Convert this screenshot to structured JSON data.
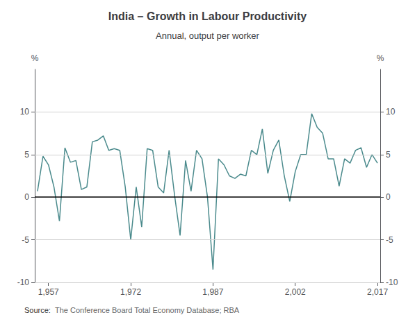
{
  "chart_data": {
    "type": "line",
    "title": "India – Growth in Labour Productivity",
    "subtitle": "Annual, output per worker",
    "source_label": "Source:",
    "source_text": "The Conference Board Total Economy Database; RBA",
    "ylabel": "%",
    "y2label": "%",
    "color": "#4a8a8c",
    "grid": true,
    "xlim": [
      1954.5,
      2017.5
    ],
    "xticks": [
      1957,
      1972,
      1987,
      2002,
      2017
    ],
    "ylim": [
      -10,
      15
    ],
    "yticks": [
      -10,
      -5,
      0,
      5,
      10
    ],
    "y2lim": [
      -10,
      15
    ],
    "y2ticks": [
      -10,
      -5,
      0,
      5,
      10
    ],
    "x": [
      1955,
      1956,
      1957,
      1958,
      1959,
      1960,
      1961,
      1962,
      1963,
      1964,
      1965,
      1966,
      1967,
      1968,
      1969,
      1970,
      1971,
      1972,
      1973,
      1974,
      1975,
      1976,
      1977,
      1978,
      1979,
      1980,
      1981,
      1982,
      1983,
      1984,
      1985,
      1986,
      1987,
      1988,
      1989,
      1990,
      1991,
      1992,
      1993,
      1994,
      1995,
      1996,
      1997,
      1998,
      1999,
      2000,
      2001,
      2002,
      2003,
      2004,
      2005,
      2006,
      2007,
      2008,
      2009,
      2010,
      2011,
      2012,
      2013,
      2014,
      2015,
      2016,
      2017
    ],
    "values": [
      0.7,
      4.8,
      3.8,
      1.2,
      -2.8,
      5.8,
      4.1,
      4.3,
      0.9,
      1.2,
      6.5,
      6.7,
      7.2,
      5.5,
      5.7,
      5.5,
      1.2,
      -5.0,
      1.2,
      -3.5,
      5.7,
      5.5,
      1.2,
      0.5,
      5.5,
      0.2,
      -4.5,
      4.3,
      0.7,
      5.5,
      4.5,
      0.0,
      -8.5,
      4.5,
      3.8,
      2.5,
      2.2,
      2.7,
      2.5,
      5.5,
      5.0,
      8.0,
      2.8,
      5.5,
      6.7,
      2.5,
      -0.5,
      3.0,
      5.0,
      5.0,
      9.8,
      8.2,
      7.5,
      4.5,
      4.5,
      1.3,
      4.5,
      4.0,
      5.5,
      5.8,
      3.5,
      5.0,
      4.0
    ]
  }
}
